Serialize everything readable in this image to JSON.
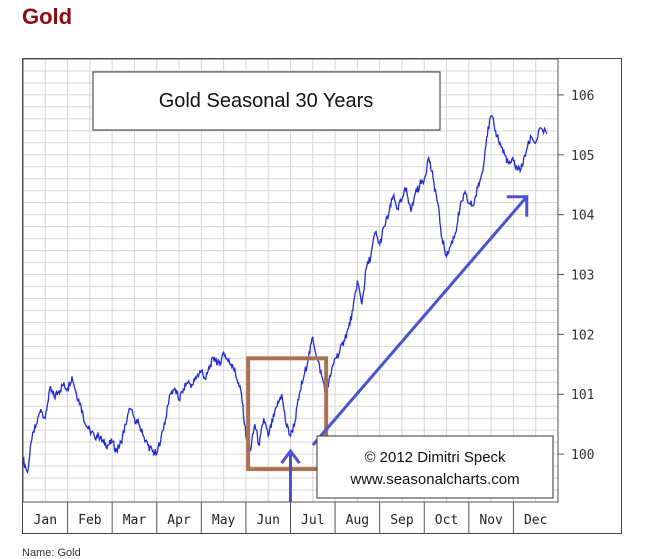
{
  "page": {
    "heading": "Gold",
    "footer_caption": "Name:  Gold"
  },
  "chart_data": {
    "type": "line",
    "title": "Gold Seasonal 30 Years",
    "copyright": [
      "© 2012  Dimitri Speck",
      "www.seasonalcharts.com"
    ],
    "categories": [
      "Jan",
      "Feb",
      "Mar",
      "Apr",
      "May",
      "Jun",
      "Jul",
      "Aug",
      "Sep",
      "Oct",
      "Nov",
      "Dec"
    ],
    "ylim": [
      99.2,
      106.6
    ],
    "yticks": [
      100,
      101,
      102,
      103,
      104,
      105,
      106
    ],
    "series_color": "#1f2bd6",
    "grid": true,
    "highlight_box_color": "#a97352",
    "arrow_color": "#4a52cc",
    "series": [
      {
        "x": [
          0,
          0.1,
          0.2,
          0.3,
          0.4,
          0.5,
          0.6,
          0.7,
          0.8,
          0.9,
          1.0,
          1.1,
          1.2,
          1.3,
          1.4,
          1.5,
          1.6,
          1.7,
          1.8,
          1.9,
          2.0,
          2.1,
          2.2,
          2.3,
          2.4,
          2.5,
          2.6,
          2.7,
          2.8,
          2.9,
          3.0,
          3.1,
          3.2,
          3.3,
          3.4,
          3.5,
          3.6,
          3.7,
          3.8,
          3.9,
          4.0,
          4.1,
          4.2,
          4.3,
          4.4,
          4.5,
          4.6,
          4.7,
          4.8,
          4.9,
          5.0,
          5.1,
          5.2,
          5.3,
          5.4,
          5.5,
          5.6,
          5.7,
          5.8,
          5.9,
          6.0,
          6.1,
          6.2,
          6.3,
          6.4,
          6.5,
          6.6,
          6.7,
          6.8,
          6.9,
          7.0,
          7.1,
          7.2,
          7.3,
          7.4,
          7.5,
          7.6,
          7.7,
          7.8,
          7.9,
          8.0,
          8.1,
          8.2,
          8.3,
          8.4,
          8.5,
          8.6,
          8.7,
          8.8,
          8.9,
          9.0,
          9.1,
          9.2,
          9.3,
          9.4,
          9.5,
          9.6,
          9.7,
          9.8,
          9.9,
          10.0,
          10.1,
          10.2,
          10.3,
          10.4,
          10.5,
          10.6,
          10.7,
          10.8,
          10.9,
          11.0,
          11.1,
          11.2,
          11.3,
          11.4,
          11.5,
          11.6,
          11.75
        ],
        "values": [
          99.9,
          99.7,
          100.25,
          100.5,
          100.75,
          100.6,
          101.1,
          100.95,
          101.05,
          101.15,
          101.1,
          101.3,
          101.0,
          100.8,
          100.5,
          100.4,
          100.3,
          100.3,
          100.2,
          100.15,
          100.2,
          100.05,
          100.2,
          100.5,
          100.75,
          100.6,
          100.5,
          100.3,
          100.15,
          100.05,
          100.0,
          100.3,
          100.6,
          101.0,
          101.1,
          100.9,
          101.1,
          101.2,
          101.15,
          101.3,
          101.4,
          101.25,
          101.5,
          101.6,
          101.5,
          101.7,
          101.55,
          101.5,
          101.25,
          101.0,
          100.3,
          100.05,
          100.5,
          100.15,
          100.6,
          100.3,
          100.55,
          100.8,
          101.0,
          100.5,
          100.3,
          100.55,
          101.0,
          101.3,
          101.6,
          101.95,
          101.6,
          101.3,
          101.05,
          101.3,
          101.6,
          101.7,
          101.9,
          102.1,
          102.4,
          102.9,
          102.5,
          103.1,
          103.3,
          103.7,
          103.5,
          103.8,
          104.0,
          104.3,
          104.1,
          104.25,
          104.45,
          104.05,
          104.35,
          104.5,
          104.6,
          104.95,
          104.6,
          104.2,
          103.6,
          103.3,
          103.5,
          103.7,
          104.1,
          104.35,
          104.2,
          104.15,
          104.45,
          104.7,
          105.3,
          105.65,
          105.4,
          105.2,
          105.0,
          104.85,
          104.9,
          104.75,
          104.8,
          105.1,
          105.3,
          105.2,
          105.45,
          105.35
        ]
      }
    ]
  }
}
